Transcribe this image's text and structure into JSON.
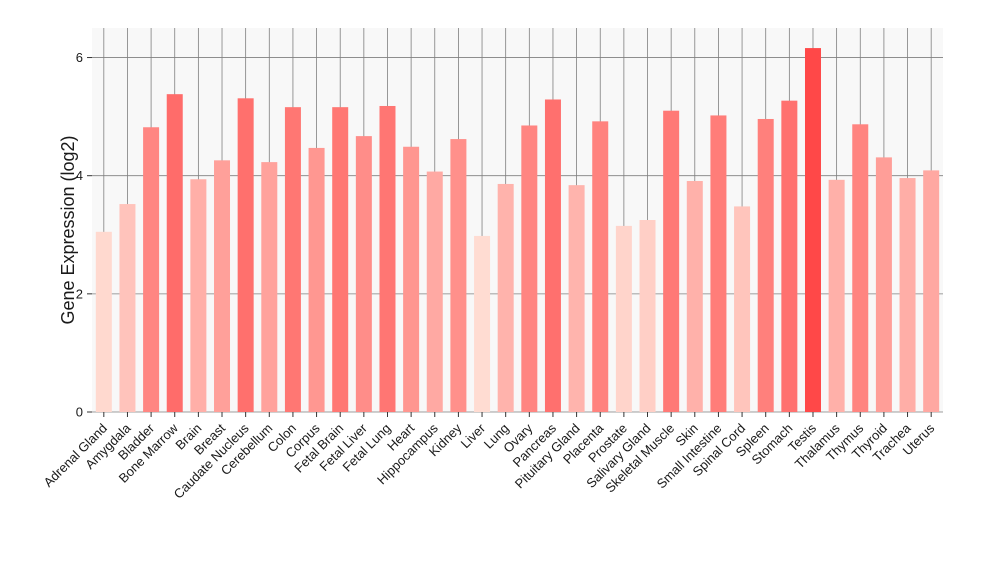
{
  "chart_data": {
    "type": "bar",
    "title": "",
    "xlabel": "",
    "ylabel": "Gene Expression (log2)",
    "ylim": [
      0,
      6.5
    ],
    "yticks": [
      0,
      2,
      4,
      6
    ],
    "grid": true,
    "categories": [
      "Adrenal Gland",
      "Amygdala",
      "Bladder",
      "Bone Marrow",
      "Brain",
      "Breast",
      "Caudate Nucleus",
      "Cerebellum",
      "Colon",
      "Corpus",
      "Fetal Brain",
      "Fetal Liver",
      "Fetal Lung",
      "Heart",
      "Hippocampus",
      "Kidney",
      "Liver",
      "Lung",
      "Ovary",
      "Pancreas",
      "Pituitary Gland",
      "Placenta",
      "Prostate",
      "Salivary Gland",
      "Skeletal Muscle",
      "Skin",
      "Small Intestine",
      "Spinal Cord",
      "Spleen",
      "Stomach",
      "Testis",
      "Thalamus",
      "Thymus",
      "Thyroid",
      "Trachea",
      "Uterus"
    ],
    "values": [
      3.05,
      3.52,
      4.82,
      5.38,
      3.94,
      4.26,
      5.31,
      4.23,
      5.16,
      4.47,
      5.16,
      4.67,
      5.18,
      4.49,
      4.07,
      4.62,
      2.98,
      3.86,
      4.85,
      5.29,
      3.84,
      4.92,
      3.15,
      3.25,
      5.1,
      3.91,
      5.02,
      3.48,
      4.96,
      5.27,
      6.16,
      3.93,
      4.87,
      4.31,
      3.96,
      4.09
    ],
    "colors": {
      "background": "#ffffff",
      "plot_background": "#f8f8f8",
      "grid": "#7f7f7f",
      "bar_low": "#ffdcd2",
      "bar_high": "#ff4848"
    }
  }
}
